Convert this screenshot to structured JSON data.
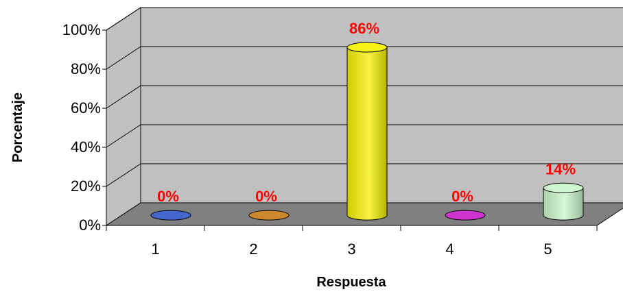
{
  "chart_data": {
    "type": "bar",
    "style": "3d-cylinder",
    "categories": [
      "1",
      "2",
      "3",
      "4",
      "5"
    ],
    "values": [
      0,
      0,
      86,
      0,
      14
    ],
    "data_labels": [
      "0%",
      "0%",
      "86%",
      "0%",
      "14%"
    ],
    "bar_colors": [
      "#2f56c8",
      "#c77a14",
      "#f4f000",
      "#c81ec8",
      "#c8f5c8"
    ],
    "ylim": [
      0,
      100
    ],
    "yticks": [
      "0%",
      "20%",
      "40%",
      "60%",
      "80%",
      "100%"
    ],
    "xlabel": "Respuesta",
    "ylabel": "Porcentaje",
    "title": "",
    "grid": true,
    "legend": "none",
    "colors": {
      "wall": "#c0c0c0",
      "floor": "#808080",
      "label": "#ff0000"
    }
  }
}
